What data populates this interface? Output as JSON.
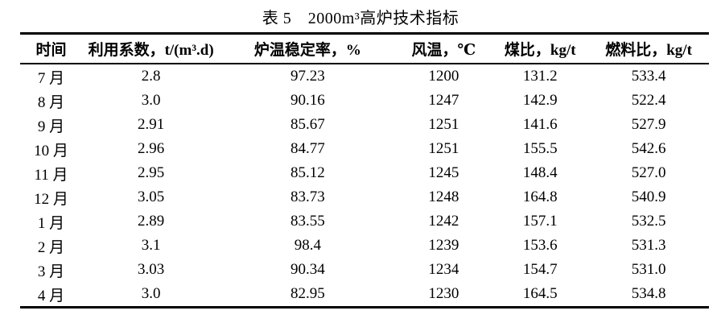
{
  "title": "表 5　2000m³高炉技术指标",
  "table": {
    "columns": [
      "时间",
      "利用系数，t/(m³.d)",
      "炉温稳定率，%",
      "风温，℃",
      "煤比，kg/t",
      "燃料比，kg/t"
    ],
    "rows": [
      [
        "7 月",
        "2.8",
        "97.23",
        "1200",
        "131.2",
        "533.4"
      ],
      [
        "8 月",
        "3.0",
        "90.16",
        "1247",
        "142.9",
        "522.4"
      ],
      [
        "9 月",
        "2.91",
        "85.67",
        "1251",
        "141.6",
        "527.9"
      ],
      [
        "10 月",
        "2.96",
        "84.77",
        "1251",
        "155.5",
        "542.6"
      ],
      [
        "11 月",
        "2.95",
        "85.12",
        "1245",
        "148.4",
        "527.0"
      ],
      [
        "12 月",
        "3.05",
        "83.73",
        "1248",
        "164.8",
        "540.9"
      ],
      [
        "1 月",
        "2.89",
        "83.55",
        "1242",
        "157.1",
        "532.5"
      ],
      [
        "2 月",
        "3.1",
        "98.4",
        "1239",
        "153.6",
        "531.3"
      ],
      [
        "3 月",
        "3.03",
        "90.34",
        "1234",
        "154.7",
        "531.0"
      ],
      [
        "4 月",
        "3.0",
        "82.95",
        "1230",
        "164.5",
        "534.8"
      ]
    ]
  },
  "colors": {
    "text": "#000000",
    "background": "#ffffff",
    "border": "#000000"
  }
}
